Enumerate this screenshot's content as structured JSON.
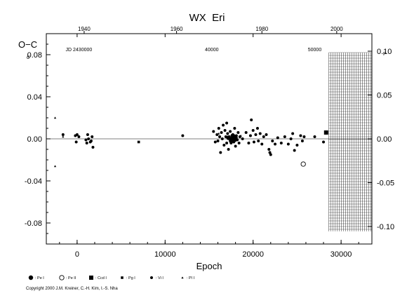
{
  "chart_data": {
    "type": "scatter",
    "title": "WX  Eri",
    "xlabel": "Epoch",
    "ylabel": "O−C",
    "ylabel_sup": "d",
    "right_ylabel_sup": "P",
    "xlim": [
      -3500,
      33500
    ],
    "ylim": [
      -0.1,
      0.1
    ],
    "right_ylim": [
      -0.12,
      0.12
    ],
    "x_ticks": [
      0,
      10000,
      20000,
      30000
    ],
    "x_tick_labels": [
      "0",
      "10000",
      "20000",
      "30000"
    ],
    "y_ticks": [
      0.08,
      0.04,
      0.0,
      -0.04,
      -0.08
    ],
    "y_tick_labels": [
      "0.08",
      "0.04",
      "0.00",
      "-0.04",
      "-0.08"
    ],
    "right_ticks": [
      0.1,
      0.05,
      0.0,
      -0.05,
      -0.1
    ],
    "right_tick_labels": [
      "0.10",
      "0.05",
      "0.00",
      "-0.05",
      "-0.10"
    ],
    "top_year_ticks": [
      {
        "epoch": 800,
        "label": "1940"
      },
      {
        "epoch": 11300,
        "label": "1960"
      },
      {
        "epoch": 21000,
        "label": "1980"
      },
      {
        "epoch": 29500,
        "label": "2000"
      }
    ],
    "top_jd_labels": [
      {
        "epoch": 200,
        "label": "JD 2430000"
      },
      {
        "epoch": 15300,
        "label": "40000"
      },
      {
        "epoch": 27000,
        "label": "50000"
      }
    ],
    "future_region": [
      28600,
      33500
    ],
    "grid": false,
    "legend": [
      {
        "symbol": "filled-circle-large",
        "label": ": Pe I"
      },
      {
        "symbol": "open-circle",
        "label": ": Pe II"
      },
      {
        "symbol": "filled-square-large",
        "label": ": Ccd I"
      },
      {
        "symbol": "filled-square-small",
        "label": ": Pg I"
      },
      {
        "symbol": "filled-circle-small",
        "label": ": Vi I"
      },
      {
        "symbol": "triangle-small",
        "label": ": Pl I"
      }
    ],
    "series": [
      {
        "name": ": Vi I",
        "symbol": "filled-circle-small",
        "points": [
          [
            -1600,
            0.004
          ],
          [
            -200,
            0.003
          ],
          [
            0,
            0.004
          ],
          [
            -100,
            -0.003
          ],
          [
            200,
            0.002
          ],
          [
            1000,
            -0.001
          ],
          [
            1100,
            -0.004
          ],
          [
            1200,
            0.004
          ],
          [
            1300,
            0.0
          ],
          [
            1500,
            -0.003
          ],
          [
            1700,
            0.002
          ],
          [
            1800,
            -0.008
          ],
          [
            1600,
            -0.002
          ],
          [
            12000,
            0.003
          ],
          [
            15500,
            0.007
          ],
          [
            15700,
            -0.003
          ],
          [
            15900,
            0.004
          ],
          [
            16000,
            -0.002
          ],
          [
            16100,
            0.01
          ],
          [
            16200,
            0.002
          ],
          [
            16300,
            -0.013
          ],
          [
            16400,
            0.006
          ],
          [
            16500,
            0.0
          ],
          [
            16600,
            0.013
          ],
          [
            16700,
            -0.006
          ],
          [
            16800,
            0.008
          ],
          [
            16900,
            0.002
          ],
          [
            17000,
            -0.004
          ],
          [
            17000,
            0.015
          ],
          [
            17100,
            0.005
          ],
          [
            17200,
            -0.01
          ],
          [
            17300,
            0.002
          ],
          [
            17400,
            0.007
          ],
          [
            17500,
            -0.004
          ],
          [
            17600,
            0.0
          ],
          [
            17700,
            0.004
          ],
          [
            17800,
            -0.003
          ],
          [
            17900,
            0.01
          ],
          [
            18000,
            -0.007
          ],
          [
            18100,
            0.003
          ],
          [
            18200,
            -0.001
          ],
          [
            18300,
            0.006
          ],
          [
            18400,
            -0.004
          ],
          [
            18500,
            0.002
          ],
          [
            18800,
            0.0
          ],
          [
            19200,
            0.006
          ],
          [
            19500,
            -0.004
          ],
          [
            19700,
            0.003
          ],
          [
            19800,
            0.018
          ],
          [
            20000,
            0.008
          ],
          [
            20100,
            -0.003
          ],
          [
            20300,
            0.004
          ],
          [
            20500,
            0.01
          ],
          [
            20600,
            -0.002
          ],
          [
            20800,
            0.005
          ],
          [
            21000,
            -0.005
          ],
          [
            21200,
            0.002
          ],
          [
            21500,
            0.004
          ],
          [
            21800,
            -0.01
          ],
          [
            21900,
            -0.013
          ],
          [
            22000,
            -0.015
          ],
          [
            22200,
            -0.002
          ],
          [
            22500,
            -0.005
          ],
          [
            22800,
            0.001
          ],
          [
            23200,
            -0.004
          ],
          [
            23600,
            0.002
          ],
          [
            24000,
            -0.005
          ],
          [
            24300,
            0.0
          ],
          [
            24500,
            0.005
          ],
          [
            24700,
            -0.011
          ],
          [
            25000,
            -0.006
          ],
          [
            25400,
            0.003
          ],
          [
            25600,
            -0.002
          ],
          [
            25800,
            0.002
          ],
          [
            27000,
            0.002
          ],
          [
            28000,
            -0.003
          ]
        ]
      },
      {
        "name": ": Pe I",
        "symbol": "filled-circle-large",
        "points": [
          [
            17200,
            0.001
          ],
          [
            17500,
            -0.002
          ],
          [
            17700,
            0.003
          ],
          [
            17900,
            -0.001
          ],
          [
            17600,
            0.0
          ],
          [
            18000,
            0.001
          ]
        ]
      },
      {
        "name": ": Pe II",
        "symbol": "open-circle",
        "points": [
          [
            25700,
            -0.024
          ]
        ]
      },
      {
        "name": ": Ccd I",
        "symbol": "filled-square-large",
        "points": [
          [
            28300,
            0.006
          ]
        ]
      },
      {
        "name": ": Pg I",
        "symbol": "filled-square-small",
        "points": [
          [
            7000,
            -0.003
          ]
        ]
      },
      {
        "name": ": Pl I",
        "symbol": "triangle-small",
        "points": [
          [
            -2500,
            0.02
          ],
          [
            -2500,
            -0.026
          ],
          [
            -1600,
            0.002
          ],
          [
            16100,
            0.005
          ],
          [
            18600,
            0.003
          ]
        ]
      }
    ]
  },
  "copyright": "Copyright 2000 J.M. Kreiner, C.-H. Kim, I.-S. Nha"
}
